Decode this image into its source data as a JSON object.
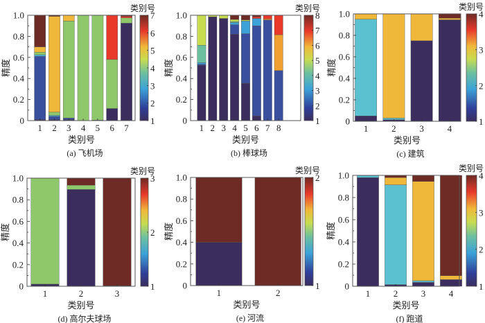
{
  "chart_data": [
    {
      "type": "bar",
      "stacked": true,
      "caption": "(a) 飞机场",
      "xlabel": "类别号",
      "ylabel": "精度",
      "colorbar_title": "类别号",
      "ylim": [
        0,
        1
      ],
      "yticks": [
        "0",
        "0.2",
        "0.4",
        "0.6",
        "0.8",
        "1.0"
      ],
      "xlim": [
        0.15,
        7.6
      ],
      "categories": [
        "1",
        "2",
        "3",
        "4",
        "5",
        "6",
        "7"
      ],
      "class_colors": [
        "#3b2e5e",
        "#3a4f9e",
        "#4cb8d8",
        "#8fc86a",
        "#f0b83a",
        "#e8392b",
        "#6e2a24"
      ],
      "colorbar_ticks": [
        "1",
        "2",
        "3",
        "4",
        "5",
        "6",
        "7"
      ],
      "bars": [
        [
          0.01,
          0.6,
          0.015,
          0.025,
          0.05,
          0,
          0.3
        ],
        [
          0.01,
          0.03,
          0.01,
          0.03,
          0.91,
          0,
          0.01
        ],
        [
          0.01,
          0.015,
          0,
          0.92,
          0.055,
          0,
          0
        ],
        [
          0,
          0,
          0,
          1.0,
          0,
          0,
          0
        ],
        [
          0.005,
          0,
          0,
          0.995,
          0,
          0,
          0
        ],
        [
          0.115,
          0,
          0,
          0.465,
          0,
          0.42,
          0
        ],
        [
          0.925,
          0,
          0,
          0.05,
          0,
          0.015,
          0.01
        ]
      ]
    },
    {
      "type": "bar",
      "stacked": true,
      "caption": "(b) 棒球场",
      "xlabel": "类别号",
      "ylabel": "精度",
      "colorbar_title": "类别号",
      "ylim": [
        0,
        1
      ],
      "yticks": [
        "0",
        "0.2",
        "0.4",
        "0.6",
        "0.8",
        "1.0"
      ],
      "xlim": [
        0,
        10
      ],
      "categories": [
        "1",
        "2",
        "3",
        "4",
        "5",
        "6",
        "7",
        "8"
      ],
      "class_colors": [
        "#3b2e5e",
        "#3a4f9e",
        "#3ca2d8",
        "#6cc0a0",
        "#c8dc50",
        "#f0a030",
        "#e8392b",
        "#6e2a24"
      ],
      "colorbar_ticks": [
        "1",
        "2",
        "3",
        "4",
        "5",
        "6",
        "7",
        "8"
      ],
      "bars": [
        [
          0.525,
          0.01,
          0.015,
          0.165,
          0.285,
          0,
          0,
          0
        ],
        [
          0.985,
          0,
          0,
          0,
          0.015,
          0,
          0,
          0
        ],
        [
          0.97,
          0,
          0,
          0,
          0.03,
          0,
          0,
          0
        ],
        [
          0.82,
          0.09,
          0.02,
          0.01,
          0.02,
          0,
          0,
          0.04
        ],
        [
          0.355,
          0.47,
          0.12,
          0,
          0.01,
          0,
          0,
          0.045
        ],
        [
          0.045,
          0.855,
          0.07,
          0,
          0,
          0,
          0.015,
          0.015
        ],
        [
          0,
          0.955,
          0,
          0,
          0,
          0.01,
          0.035,
          0
        ],
        [
          0,
          0.475,
          0,
          0,
          0,
          0.34,
          0.185,
          0
        ]
      ]
    },
    {
      "type": "bar",
      "stacked": true,
      "caption": "(c) 建筑",
      "xlabel": "类别号",
      "ylabel": "精度",
      "colorbar_title": "类别号",
      "ylim": [
        0,
        1
      ],
      "yticks": [
        "0",
        "0.2",
        "0.4",
        "0.6",
        "0.8",
        "1.0"
      ],
      "xlim": [
        0.55,
        4.4
      ],
      "categories": [
        "1",
        "2",
        "3",
        "4"
      ],
      "class_colors": [
        "#3b2e5e",
        "#5bc0d0",
        "#f0b83a",
        "#6e2a24"
      ],
      "colorbar_ticks": [
        "1",
        "2",
        "3",
        "4"
      ],
      "bars": [
        [
          0.05,
          0.9,
          0.05,
          0
        ],
        [
          0.015,
          0.015,
          0.97,
          0
        ],
        [
          0.75,
          0,
          0.25,
          0
        ],
        [
          0.945,
          0,
          0.015,
          0.04
        ]
      ]
    },
    {
      "type": "bar",
      "stacked": true,
      "caption": "(d) 高尔夫球场",
      "xlabel": "类别号",
      "ylabel": "精度",
      "colorbar_title": "类别号",
      "ylim": [
        0,
        1
      ],
      "yticks": [
        "0",
        "0.2",
        "0.4",
        "0.6",
        "0.8",
        "1.0"
      ],
      "xlim": [
        0.5,
        3.5
      ],
      "categories": [
        "1",
        "2",
        "3"
      ],
      "class_colors": [
        "#3b2e5e",
        "#8fc86a",
        "#6e2a24"
      ],
      "colorbar_ticks": [
        "1",
        "2",
        "3"
      ],
      "bars": [
        [
          0.02,
          0.98,
          0
        ],
        [
          0.895,
          0.04,
          0.065
        ],
        [
          0.005,
          0,
          0.995
        ]
      ]
    },
    {
      "type": "bar",
      "stacked": true,
      "caption": "(e) 河流",
      "xlabel": "类别号",
      "ylabel": "精度",
      "colorbar_title": "类别号",
      "ylim": [
        0,
        1
      ],
      "yticks": [
        "0",
        "0.2",
        "0.4",
        "0.6",
        "0.8",
        "1.0"
      ],
      "xlim": [
        0.52,
        2.42
      ],
      "categories": [
        "1",
        "2"
      ],
      "class_colors": [
        "#3b2e5e",
        "#6e2a24"
      ],
      "colorbar_ticks": [
        "1",
        "2"
      ],
      "bars": [
        [
          0.4,
          0.6
        ],
        [
          0,
          1.0
        ]
      ]
    },
    {
      "type": "bar",
      "stacked": true,
      "caption": "(f) 跑道",
      "xlabel": "类别号",
      "ylabel": "精度",
      "colorbar_title": "类别号",
      "ylim": [
        0,
        1
      ],
      "yticks": [
        "0",
        "0.2",
        "0.4",
        "0.6",
        "0.8",
        "1.0"
      ],
      "xlim": [
        0.45,
        4.3
      ],
      "categories": [
        "1",
        "2",
        "3",
        "4"
      ],
      "class_colors": [
        "#3b2e5e",
        "#5bc0d0",
        "#f0b83a",
        "#6e2a24"
      ],
      "colorbar_ticks": [
        "1",
        "2",
        "3",
        "4"
      ],
      "bars": [
        [
          0.98,
          0.02,
          0,
          0
        ],
        [
          0.015,
          0.9,
          0.065,
          0.02
        ],
        [
          0.035,
          0.015,
          0.895,
          0.055
        ],
        [
          0.06,
          0,
          0.035,
          0.905
        ]
      ]
    }
  ]
}
